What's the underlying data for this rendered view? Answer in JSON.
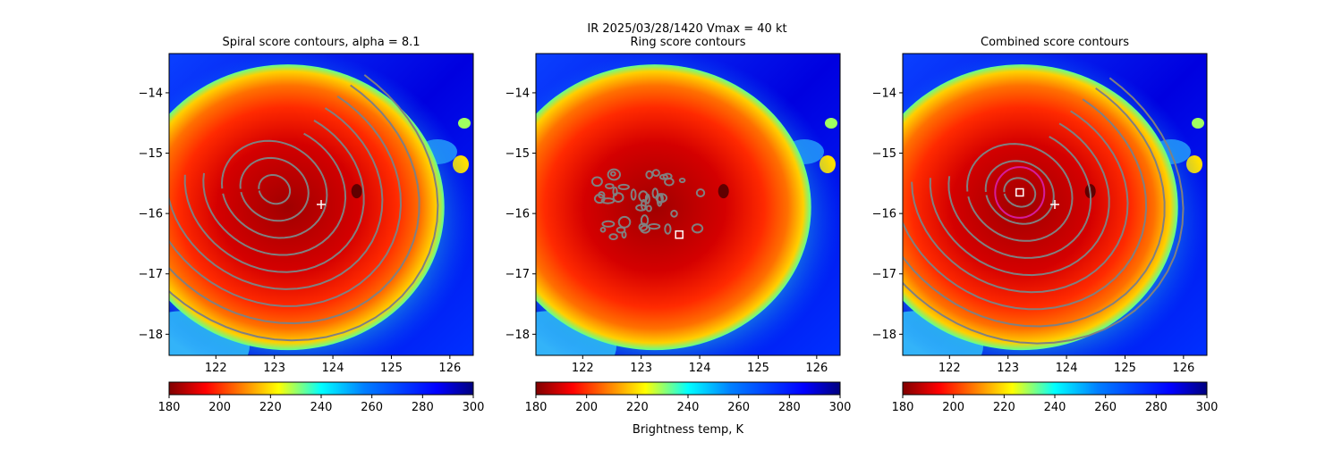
{
  "figure": {
    "suptitle_line1": "IR  2025/03/28/1420    Vmax = 40 kt",
    "colorbar_label": "Brightness temp, K"
  },
  "colors": {
    "contour": "#808080",
    "marker": "#ffffff",
    "ring": "#d41c9c"
  },
  "chart_data": [
    {
      "type": "heatmap",
      "title": "Spiral score contours, alpha =  8.1",
      "xlim": [
        121.2,
        126.4
      ],
      "ylim": [
        -18.35,
        -13.35
      ],
      "xticks": [
        122,
        123,
        124,
        125,
        126
      ],
      "yticks": [
        -14,
        -15,
        -16,
        -17,
        -18
      ],
      "center": [
        123.0,
        -15.6
      ],
      "contour_levels": 9,
      "plus_marker": [
        123.8,
        -15.85
      ],
      "colorbar": {
        "range": [
          180,
          300
        ],
        "ticks": [
          180,
          200,
          220,
          240,
          260,
          280,
          300
        ]
      }
    },
    {
      "type": "heatmap",
      "title": "Ring score contours",
      "xlim": [
        121.2,
        126.4
      ],
      "ylim": [
        -18.35,
        -13.35
      ],
      "xticks": [
        122,
        123,
        124,
        125,
        126
      ],
      "yticks": [
        -14,
        -15,
        -16,
        -17,
        -18
      ],
      "square_marker": [
        123.65,
        -16.35
      ],
      "colorbar": {
        "range": [
          180,
          300
        ],
        "ticks": [
          180,
          200,
          220,
          240,
          260,
          280,
          300
        ]
      }
    },
    {
      "type": "heatmap",
      "title": "Combined score contours",
      "xlim": [
        121.2,
        126.4
      ],
      "ylim": [
        -18.35,
        -13.35
      ],
      "xticks": [
        122,
        123,
        124,
        125,
        126
      ],
      "yticks": [
        -14,
        -15,
        -16,
        -17,
        -18
      ],
      "center": [
        123.2,
        -15.65
      ],
      "contour_levels": 9,
      "ring_center": [
        123.2,
        -15.65
      ],
      "ring_radius_deg": 0.42,
      "square_marker": [
        123.2,
        -15.65
      ],
      "plus_marker": [
        123.8,
        -15.85
      ],
      "colorbar": {
        "range": [
          180,
          300
        ],
        "ticks": [
          180,
          200,
          220,
          240,
          260,
          280,
          300
        ]
      }
    }
  ]
}
